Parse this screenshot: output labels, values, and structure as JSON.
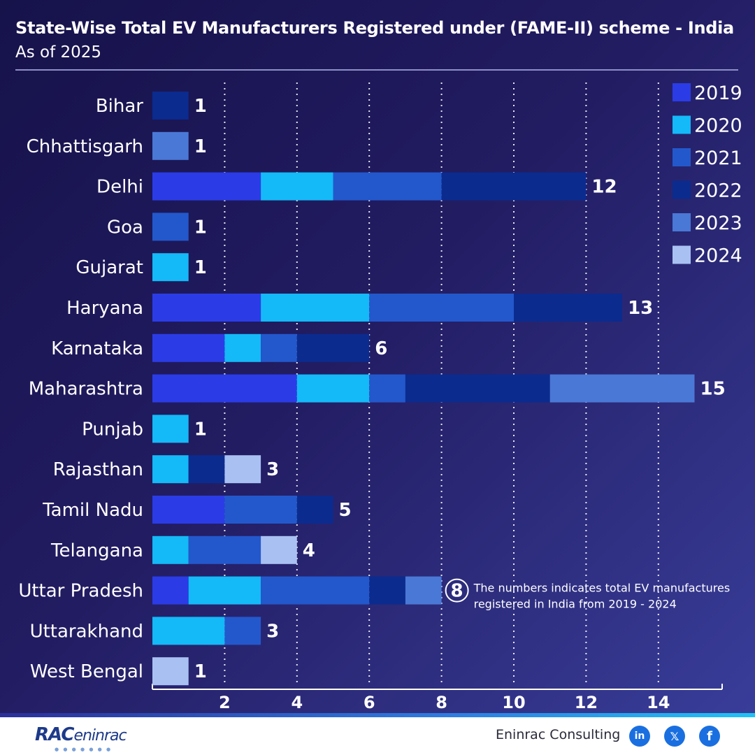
{
  "header": {
    "title": "State-Wise Total EV Manufacturers Registered under (FAME-II) scheme - India",
    "subtitle": "As of 2025"
  },
  "chart_data": {
    "type": "bar",
    "orientation": "horizontal",
    "stacked": true,
    "title": "State-Wise Total EV Manufacturers Registered under (FAME-II) scheme - India",
    "subtitle": "As of 2025",
    "categories": [
      "Bihar",
      "Chhattisgarh",
      "Delhi",
      "Goa",
      "Gujarat",
      "Haryana",
      "Karnataka",
      "Maharashtra",
      "Punjab",
      "Rajasthan",
      "Tamil Nadu",
      "Telangana",
      "Uttar Pradesh",
      "Uttarakhand",
      "West Bengal"
    ],
    "series": [
      {
        "name": "2019",
        "color": "#2b3ce6",
        "values": [
          0,
          0,
          3,
          0,
          0,
          3,
          2,
          4,
          0,
          0,
          2,
          0,
          1,
          0,
          0
        ]
      },
      {
        "name": "2020",
        "color": "#14b9f8",
        "values": [
          0,
          0,
          2,
          0,
          1,
          3,
          1,
          2,
          1,
          1,
          0,
          1,
          2,
          2,
          0
        ]
      },
      {
        "name": "2021",
        "color": "#2358cc",
        "values": [
          0,
          0,
          3,
          1,
          0,
          4,
          1,
          1,
          0,
          0,
          2,
          2,
          3,
          1,
          0
        ]
      },
      {
        "name": "2022",
        "color": "#0b2b8f",
        "values": [
          1,
          0,
          4,
          0,
          0,
          3,
          2,
          4,
          0,
          1,
          1,
          0,
          1,
          0,
          0
        ]
      },
      {
        "name": "2023",
        "color": "#4a78d6",
        "values": [
          0,
          1,
          0,
          0,
          0,
          0,
          0,
          4,
          0,
          0,
          0,
          0,
          1,
          0,
          0
        ]
      },
      {
        "name": "2024",
        "color": "#a9c1f2",
        "values": [
          0,
          0,
          0,
          0,
          0,
          0,
          0,
          0,
          0,
          1,
          0,
          1,
          0,
          0,
          1
        ]
      }
    ],
    "totals": [
      "1",
      "1",
      "12",
      "1",
      "1",
      "13",
      "6",
      "15",
      "1",
      "3",
      "5",
      "4",
      "8",
      "3",
      "1"
    ],
    "xticks": [
      "2",
      "4",
      "6",
      "8",
      "10",
      "12",
      "14"
    ],
    "xlim": [
      0,
      16
    ],
    "grid": "vertical dotted",
    "legend_position": "top-right",
    "annotation": {
      "category": "Uttar Pradesh",
      "lines": [
        "The numbers indicates total EV manufactures",
        "registered in India from 2019 - 2024"
      ]
    }
  },
  "footer": {
    "logo_text_bold": "RAC",
    "logo_text": "eninrac",
    "company": "Eninrac Consulting",
    "social": [
      "linkedin-icon",
      "x-icon",
      "facebook-icon"
    ]
  }
}
